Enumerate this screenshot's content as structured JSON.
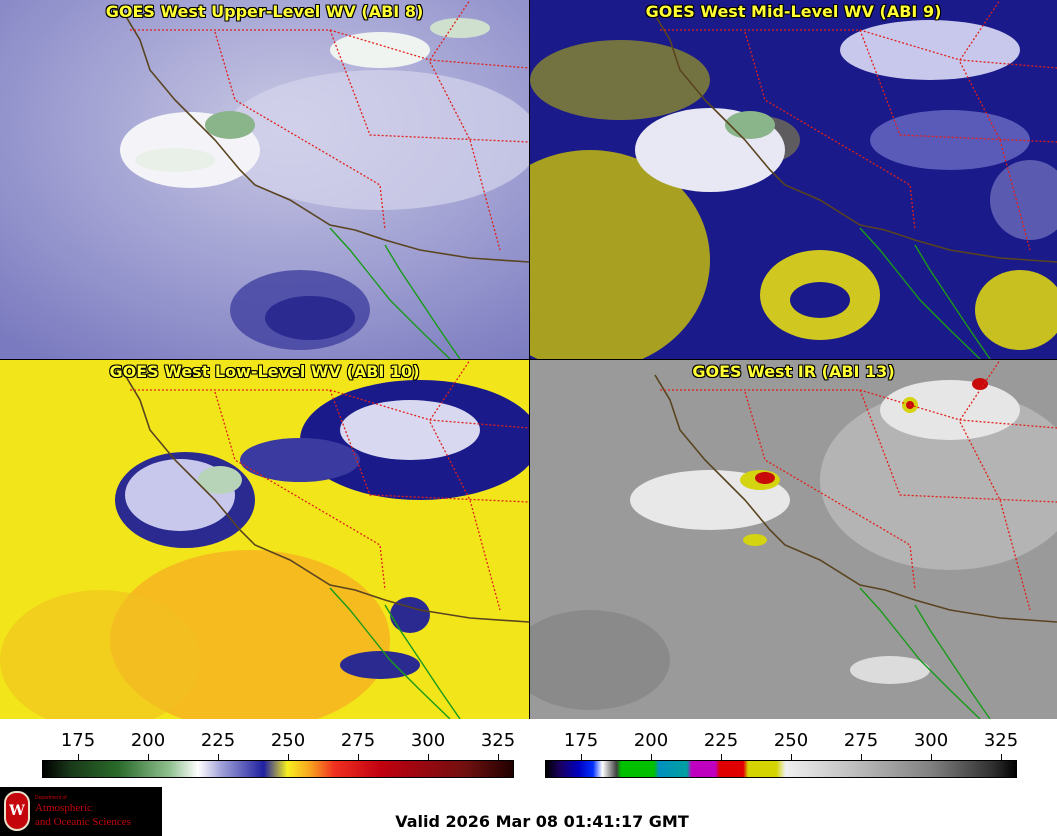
{
  "panels": [
    {
      "title": "GOES West Upper-Level WV (ABI 8)"
    },
    {
      "title": "GOES West Mid-Level WV (ABI 9)"
    },
    {
      "title": "GOES West Low-Level WV (ABI 10)"
    },
    {
      "title": "GOES West IR (ABI 13)"
    }
  ],
  "colorbar_wv": {
    "ticks": [
      "175",
      "200",
      "225",
      "250",
      "275",
      "300",
      "325"
    ],
    "min": 162,
    "max": 330
  },
  "colorbar_ir": {
    "ticks": [
      "175",
      "200",
      "225",
      "250",
      "275",
      "300",
      "325"
    ],
    "min": 162,
    "max": 330
  },
  "colors": {
    "title_text": "#ffff33",
    "state_border": "#e0201a",
    "coast": "#5a4420",
    "mexico_coast": "#1a9a1a",
    "logo_red": "#c5050c"
  },
  "logo": {
    "line1": "Department of",
    "line2": "Atmospheric",
    "line3": "and Oceanic Sciences",
    "crest": "W"
  },
  "footer": {
    "valid": "Valid 2026 Mar 08 01:41:17 GMT"
  }
}
